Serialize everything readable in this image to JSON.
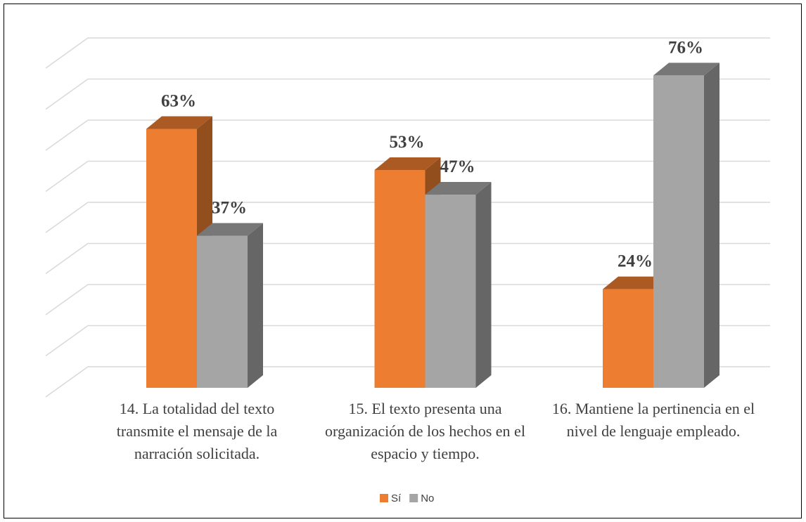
{
  "chart_data": {
    "type": "bar3d",
    "categories": [
      "14. La totalidad del texto transmite el mensaje de la narración solicitada.",
      "15. El texto presenta una organización de los hechos en el espacio y tiempo.",
      "16. Mantiene la pertinencia en el nivel de lenguaje empleado."
    ],
    "series": [
      {
        "name": "Sí",
        "color": "#ed7d31",
        "values": [
          63,
          53,
          24
        ],
        "value_labels": [
          "63%",
          "53%",
          "24%"
        ]
      },
      {
        "name": "No",
        "color": "#a5a5a5",
        "values": [
          37,
          47,
          76
        ],
        "value_labels": [
          "37%",
          "47%",
          "76%"
        ]
      }
    ],
    "ylim": [
      0,
      80
    ],
    "yticks": [
      0,
      10,
      20,
      30,
      40,
      50,
      60,
      70,
      80
    ],
    "grid": true,
    "legend": "bottom"
  }
}
